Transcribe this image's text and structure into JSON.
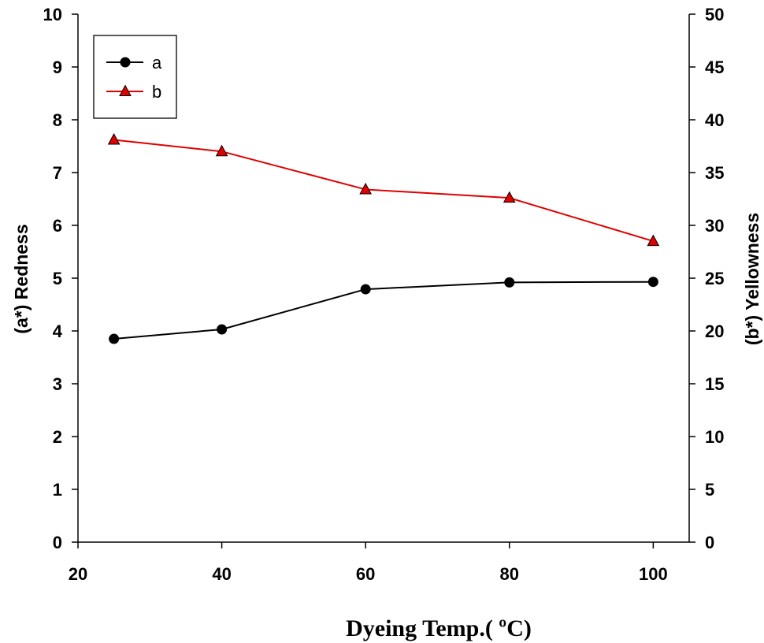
{
  "chart_data": {
    "type": "line",
    "xlabel": "Dyeing Temp.( ºC)",
    "ylabel_left": "(a*) Redness",
    "ylabel_right": "(b*) Yellowness",
    "x": [
      25,
      40,
      60,
      80,
      100
    ],
    "xlim": [
      20,
      105
    ],
    "xticks": [
      20,
      40,
      60,
      80,
      100
    ],
    "ylim_left": [
      0,
      10
    ],
    "yticks_left": [
      0,
      1,
      2,
      3,
      4,
      5,
      6,
      7,
      8,
      9,
      10
    ],
    "ylim_right": [
      0,
      50
    ],
    "yticks_right": [
      0,
      5,
      10,
      15,
      20,
      25,
      30,
      35,
      40,
      45,
      50
    ],
    "grid": false,
    "legend_position": "top-left",
    "series": [
      {
        "name": "a",
        "axis": "left",
        "values": [
          3.85,
          4.03,
          4.79,
          4.92,
          4.93
        ],
        "color": "#000000",
        "marker": "circle"
      },
      {
        "name": "b",
        "axis": "right",
        "values": [
          38.1,
          37.0,
          33.4,
          32.6,
          28.5
        ],
        "color": "#e00000",
        "marker": "triangle",
        "marker_fill": "#e00000"
      }
    ]
  }
}
